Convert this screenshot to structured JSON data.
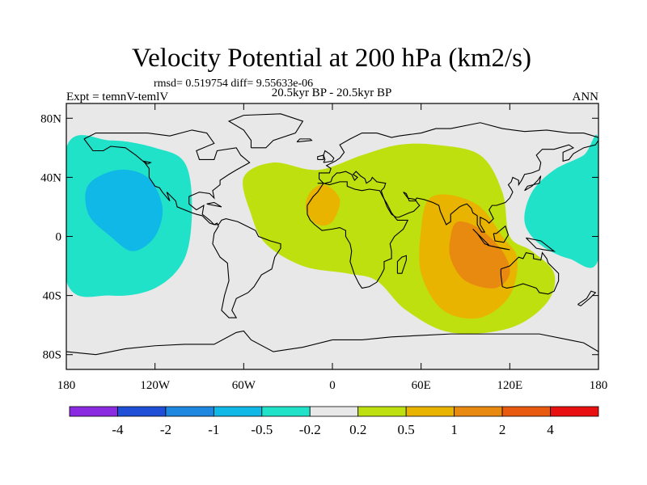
{
  "chart_data": {
    "type": "heatmap",
    "title": "Velocity Potential at 200 hPa (km2/s)",
    "stats_line": "rmsd= 0.519754 diff= 9.55633e-06",
    "left_string": "Expt = temnV-temlV",
    "center_string": "20.5kyr BP - 20.5kyr BP",
    "right_string": "ANN",
    "x_ticks": [
      "180",
      "120W",
      "60W",
      "0",
      "60E",
      "120E",
      "180"
    ],
    "x_tick_values": [
      -180,
      -120,
      -60,
      0,
      60,
      120,
      180
    ],
    "y_ticks": [
      "80N",
      "40N",
      "0",
      "40S",
      "80S"
    ],
    "y_tick_values": [
      80,
      40,
      0,
      -40,
      -80
    ],
    "xlim": [
      -180,
      180
    ],
    "ylim": [
      -90,
      90
    ],
    "colorbar": {
      "labels": [
        "-4",
        "-2",
        "-1",
        "-0.5",
        "-0.2",
        "0.2",
        "0.5",
        "1",
        "2",
        "4"
      ],
      "colors": [
        "#8a2be2",
        "#1e4fd6",
        "#1e87e0",
        "#10b8e8",
        "#20e2c8",
        "#e8e8e8",
        "#bfe00f",
        "#e8b400",
        "#e88a10",
        "#e85a10",
        "#e81010"
      ]
    },
    "regions": [
      {
        "label": "-0.5",
        "polygon": [
          [
            -180,
            60
          ],
          [
            -150,
            65
          ],
          [
            -120,
            60
          ],
          [
            -100,
            50
          ],
          [
            -95,
            20
          ],
          [
            -100,
            -15
          ],
          [
            -120,
            -35
          ],
          [
            -150,
            -40
          ],
          [
            -180,
            -30
          ]
        ]
      },
      {
        "label": "-1",
        "polygon": [
          [
            -165,
            35
          ],
          [
            -145,
            45
          ],
          [
            -125,
            40
          ],
          [
            -115,
            20
          ],
          [
            -120,
            0
          ],
          [
            -135,
            -10
          ],
          [
            -150,
            0
          ],
          [
            -165,
            15
          ]
        ]
      },
      {
        "label": "-0.5",
        "polygon": [
          [
            135,
            30
          ],
          [
            150,
            45
          ],
          [
            170,
            55
          ],
          [
            180,
            65
          ],
          [
            180,
            -15
          ],
          [
            160,
            -15
          ],
          [
            140,
            -5
          ],
          [
            130,
            10
          ]
        ]
      },
      {
        "label": "0.2",
        "polygon": [
          [
            -60,
            40
          ],
          [
            -40,
            50
          ],
          [
            -10,
            45
          ],
          [
            20,
            55
          ],
          [
            45,
            62
          ],
          [
            70,
            62
          ],
          [
            100,
            55
          ],
          [
            115,
            30
          ],
          [
            120,
            0
          ],
          [
            135,
            -10
          ],
          [
            150,
            -25
          ],
          [
            145,
            -45
          ],
          [
            120,
            -62
          ],
          [
            80,
            -65
          ],
          [
            50,
            -50
          ],
          [
            30,
            -30
          ],
          [
            10,
            -25
          ],
          [
            -20,
            -20
          ],
          [
            -45,
            -5
          ],
          [
            -55,
            15
          ]
        ]
      },
      {
        "label": "0.5",
        "polygon": [
          [
            65,
            25
          ],
          [
            80,
            28
          ],
          [
            100,
            20
          ],
          [
            115,
            0
          ],
          [
            125,
            -15
          ],
          [
            120,
            -40
          ],
          [
            100,
            -55
          ],
          [
            75,
            -50
          ],
          [
            60,
            -25
          ],
          [
            60,
            5
          ]
        ]
      },
      {
        "label": "0.5",
        "polygon": [
          [
            -15,
            30
          ],
          [
            -5,
            35
          ],
          [
            5,
            25
          ],
          [
            0,
            10
          ],
          [
            -10,
            8
          ],
          [
            -18,
            18
          ]
        ]
      },
      {
        "label": "1",
        "polygon": [
          [
            85,
            10
          ],
          [
            100,
            5
          ],
          [
            115,
            -10
          ],
          [
            120,
            -25
          ],
          [
            110,
            -35
          ],
          [
            90,
            -30
          ],
          [
            80,
            -15
          ],
          [
            80,
            0
          ]
        ]
      }
    ]
  }
}
